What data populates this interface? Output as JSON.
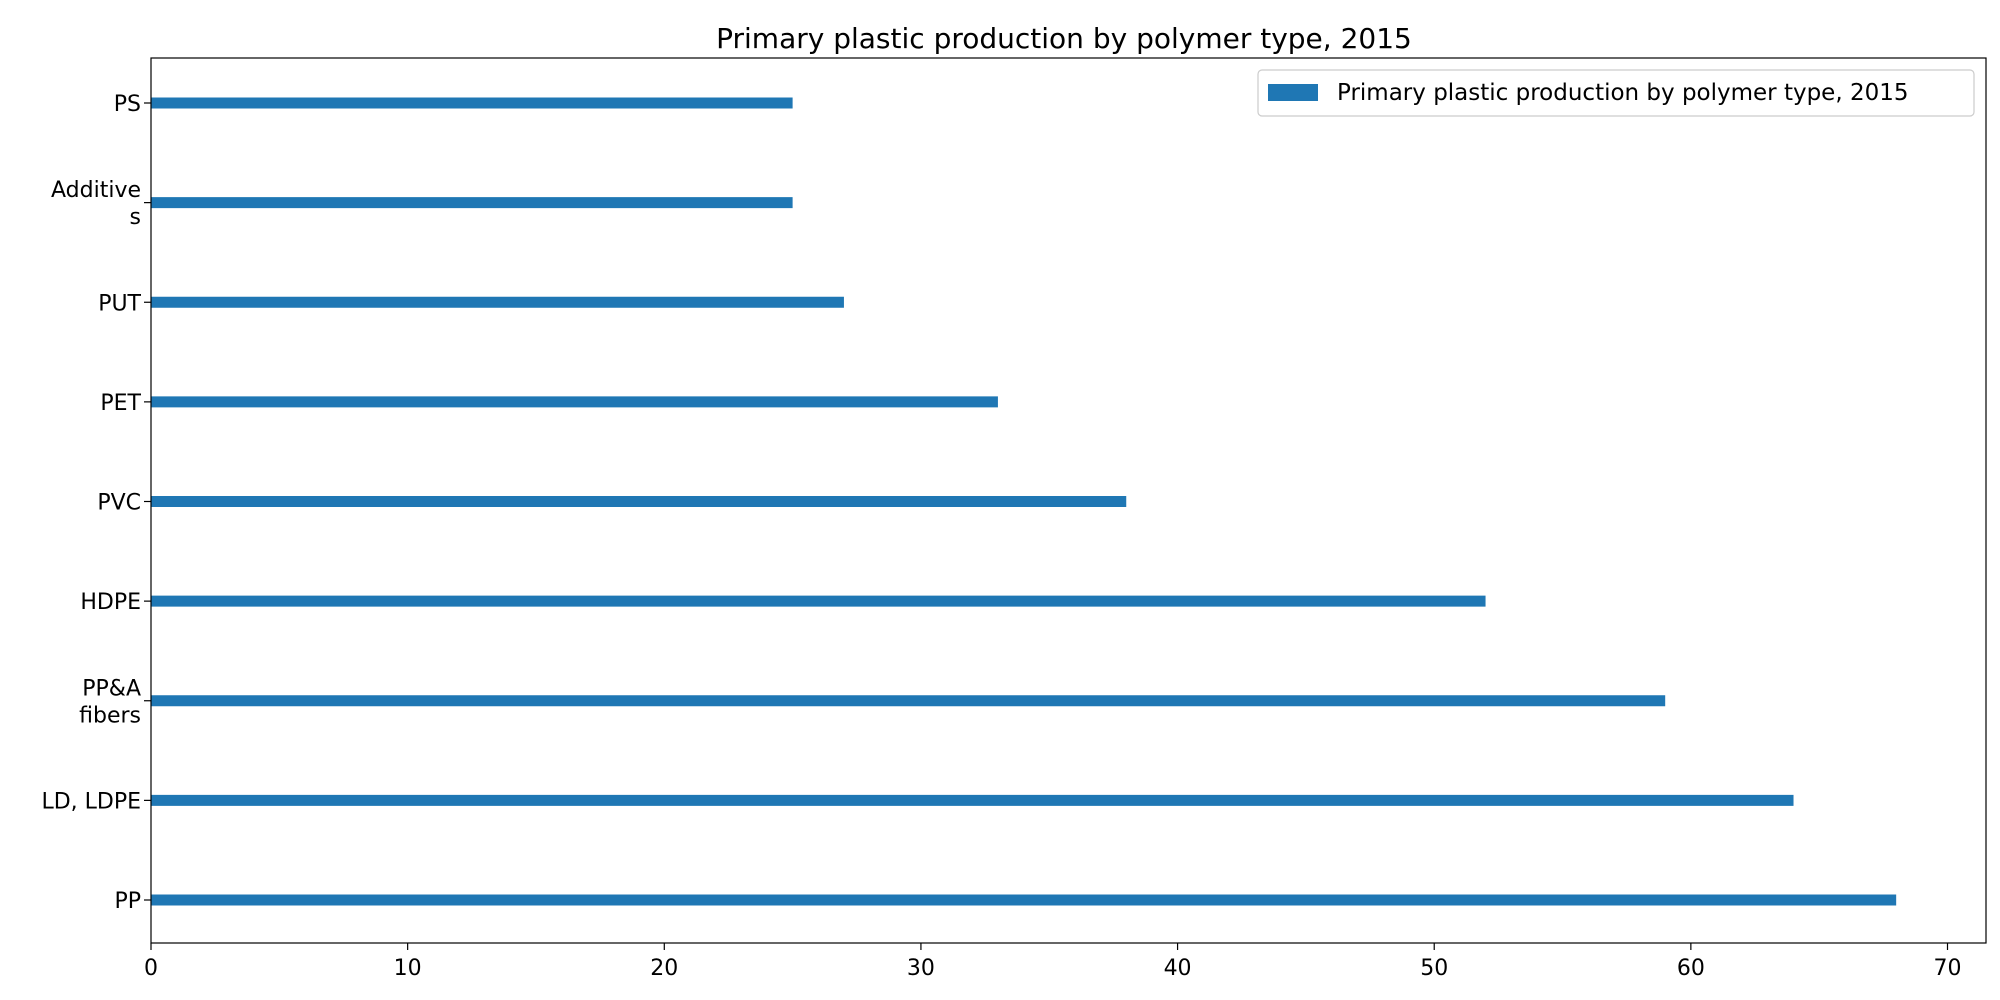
{
  "chart_data": {
    "type": "bar",
    "orientation": "horizontal",
    "title": "Primary plastic production by polymer type, 2015",
    "xlabel": "",
    "ylabel": "",
    "categories": [
      "PS",
      "Additive\ns",
      "PUT",
      "PET",
      "PVC",
      "HDPE",
      "PP&A\nfibers",
      "LD, LDPE",
      "PP"
    ],
    "series": [
      {
        "name": "Primary plastic production by polymer type, 2015",
        "values": [
          25,
          25,
          27,
          33,
          38,
          52,
          59,
          64,
          68
        ]
      }
    ],
    "xlim": [
      0,
      71.5
    ],
    "xticks": [
      0,
      10,
      20,
      30,
      40,
      50,
      60,
      70
    ],
    "grid": false,
    "legend_position": "top-right",
    "colors": {
      "bar": "#1f77b4",
      "axis": "#000000"
    }
  }
}
